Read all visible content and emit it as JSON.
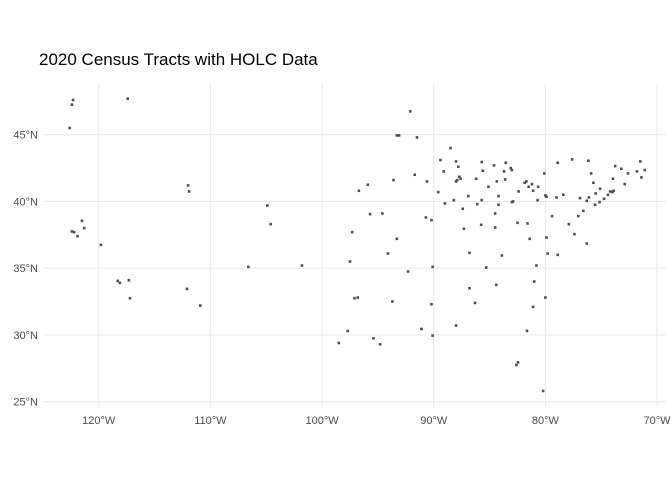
{
  "title": "2020 Census Tracts with HOLC Data",
  "colors": {
    "grid": "#ebebeb",
    "tract": "#4d4d4d",
    "text": "#4d4d4d"
  },
  "chart_data": {
    "type": "scatter",
    "title": "2020 Census Tracts with HOLC Data",
    "xlabel": "",
    "ylabel": "",
    "grid": true,
    "xlim": [
      -124.9,
      -69.2
    ],
    "ylim": [
      24.6,
      48.8
    ],
    "x_ticks": [
      -120,
      -110,
      -100,
      -90,
      -80,
      -70
    ],
    "x_tick_labels": [
      "120°W",
      "110°W",
      "100°W",
      "90°W",
      "80°W",
      "70°W"
    ],
    "y_ticks": [
      25,
      30,
      35,
      40,
      45
    ],
    "y_tick_labels": [
      "25°N",
      "30°N",
      "35°N",
      "40°N",
      "45°N"
    ],
    "points": [
      [
        -122.3,
        47.6
      ],
      [
        -122.4,
        47.25
      ],
      [
        -122.6,
        45.5
      ],
      [
        -117.4,
        47.7
      ],
      [
        -122.4,
        37.75
      ],
      [
        -122.2,
        37.7
      ],
      [
        -121.9,
        37.4
      ],
      [
        -121.5,
        38.55
      ],
      [
        -121.3,
        38.0
      ],
      [
        -119.8,
        36.75
      ],
      [
        -118.3,
        34.05
      ],
      [
        -118.1,
        33.9
      ],
      [
        -117.2,
        32.75
      ],
      [
        -117.3,
        34.1
      ],
      [
        -112.0,
        41.2
      ],
      [
        -111.9,
        40.75
      ],
      [
        -112.1,
        33.45
      ],
      [
        -110.9,
        32.2
      ],
      [
        -106.6,
        35.1
      ],
      [
        -104.9,
        39.7
      ],
      [
        -104.6,
        38.3
      ],
      [
        -101.8,
        35.2
      ],
      [
        -97.5,
        35.5
      ],
      [
        -97.3,
        37.7
      ],
      [
        -96.7,
        40.8
      ],
      [
        -95.9,
        41.25
      ],
      [
        -96.8,
        32.8
      ],
      [
        -97.1,
        32.75
      ],
      [
        -97.7,
        30.3
      ],
      [
        -98.5,
        29.4
      ],
      [
        -95.4,
        29.75
      ],
      [
        -94.8,
        29.3
      ],
      [
        -94.6,
        39.1
      ],
      [
        -95.7,
        39.05
      ],
      [
        -93.6,
        41.6
      ],
      [
        -93.3,
        44.95
      ],
      [
        -93.1,
        44.95
      ],
      [
        -92.1,
        46.75
      ],
      [
        -94.1,
        36.1
      ],
      [
        -93.3,
        37.2
      ],
      [
        -93.7,
        32.5
      ],
      [
        -92.3,
        34.75
      ],
      [
        -90.2,
        38.6
      ],
      [
        -90.1,
        35.1
      ],
      [
        -90.2,
        32.3
      ],
      [
        -90.1,
        29.95
      ],
      [
        -91.1,
        30.45
      ],
      [
        -91.7,
        42.0
      ],
      [
        -90.6,
        41.5
      ],
      [
        -89.6,
        40.7
      ],
      [
        -89.4,
        43.1
      ],
      [
        -88.0,
        43.0
      ],
      [
        -87.7,
        41.85
      ],
      [
        -87.9,
        41.6
      ],
      [
        -87.6,
        41.7
      ],
      [
        -86.2,
        41.7
      ],
      [
        -88.0,
        41.5
      ],
      [
        -87.3,
        37.95
      ],
      [
        -86.1,
        39.8
      ],
      [
        -85.1,
        41.1
      ],
      [
        -84.5,
        39.1
      ],
      [
        -84.2,
        39.75
      ],
      [
        -83.0,
        39.95
      ],
      [
        -83.0,
        42.35
      ],
      [
        -83.1,
        42.5
      ],
      [
        -83.7,
        42.25
      ],
      [
        -85.6,
        42.3
      ],
      [
        -85.7,
        42.95
      ],
      [
        -84.6,
        42.7
      ],
      [
        -83.6,
        41.65
      ],
      [
        -81.7,
        41.5
      ],
      [
        -81.5,
        41.1
      ],
      [
        -80.65,
        41.1
      ],
      [
        -80.0,
        40.45
      ],
      [
        -79.9,
        40.35
      ],
      [
        -82.4,
        40.75
      ],
      [
        -80.1,
        42.1
      ],
      [
        -78.9,
        42.9
      ],
      [
        -77.6,
        43.15
      ],
      [
        -76.15,
        43.05
      ],
      [
        -75.9,
        42.1
      ],
      [
        -74.0,
        40.7
      ],
      [
        -73.9,
        40.8
      ],
      [
        -74.2,
        40.75
      ],
      [
        -74.4,
        40.5
      ],
      [
        -75.15,
        39.95
      ],
      [
        -75.55,
        39.75
      ],
      [
        -76.6,
        39.3
      ],
      [
        -77.05,
        38.9
      ],
      [
        -77.4,
        37.55
      ],
      [
        -76.3,
        36.85
      ],
      [
        -79.9,
        37.3
      ],
      [
        -80.8,
        35.2
      ],
      [
        -79.8,
        36.1
      ],
      [
        -78.9,
        36.0
      ],
      [
        -81.0,
        34.0
      ],
      [
        -80.0,
        32.8
      ],
      [
        -84.4,
        33.75
      ],
      [
        -86.8,
        33.5
      ],
      [
        -86.3,
        32.4
      ],
      [
        -88.0,
        30.7
      ],
      [
        -81.1,
        32.1
      ],
      [
        -81.65,
        30.3
      ],
      [
        -82.45,
        27.95
      ],
      [
        -82.6,
        27.75
      ],
      [
        -80.2,
        25.8
      ],
      [
        -85.3,
        35.05
      ],
      [
        -86.8,
        36.15
      ],
      [
        -83.9,
        35.95
      ],
      [
        -84.5,
        38.05
      ],
      [
        -85.75,
        38.25
      ],
      [
        -82.5,
        38.4
      ],
      [
        -81.6,
        38.35
      ],
      [
        -81.4,
        37.2
      ],
      [
        -79.0,
        40.3
      ],
      [
        -78.4,
        40.5
      ],
      [
        -76.9,
        40.25
      ],
      [
        -76.3,
        40.05
      ],
      [
        -75.5,
        40.6
      ],
      [
        -75.7,
        41.4
      ],
      [
        -73.75,
        42.65
      ],
      [
        -73.2,
        42.45
      ],
      [
        -72.6,
        42.1
      ],
      [
        -72.9,
        41.3
      ],
      [
        -71.4,
        41.8
      ],
      [
        -71.1,
        42.35
      ],
      [
        -71.8,
        42.25
      ],
      [
        -71.5,
        43.0
      ],
      [
        -73.95,
        41.7
      ],
      [
        -76.1,
        40.3
      ],
      [
        -84.35,
        41.5
      ],
      [
        -83.55,
        42.9
      ],
      [
        -82.9,
        40.0
      ],
      [
        -81.1,
        40.8
      ],
      [
        -80.7,
        40.1
      ],
      [
        -85.7,
        40.1
      ],
      [
        -87.4,
        39.45
      ],
      [
        -88.2,
        40.1
      ],
      [
        -89.1,
        42.25
      ],
      [
        -84.2,
        40.4
      ],
      [
        -86.9,
        40.4
      ],
      [
        -89.0,
        39.85
      ],
      [
        -91.5,
        44.8
      ],
      [
        -88.5,
        44.0
      ],
      [
        -87.8,
        42.6
      ],
      [
        -90.7,
        38.8
      ],
      [
        -81.85,
        41.4
      ],
      [
        -81.2,
        41.3
      ],
      [
        -79.4,
        38.9
      ],
      [
        -77.9,
        38.3
      ],
      [
        -75.1,
        40.95
      ],
      [
        -74.75,
        40.2
      ]
    ]
  }
}
